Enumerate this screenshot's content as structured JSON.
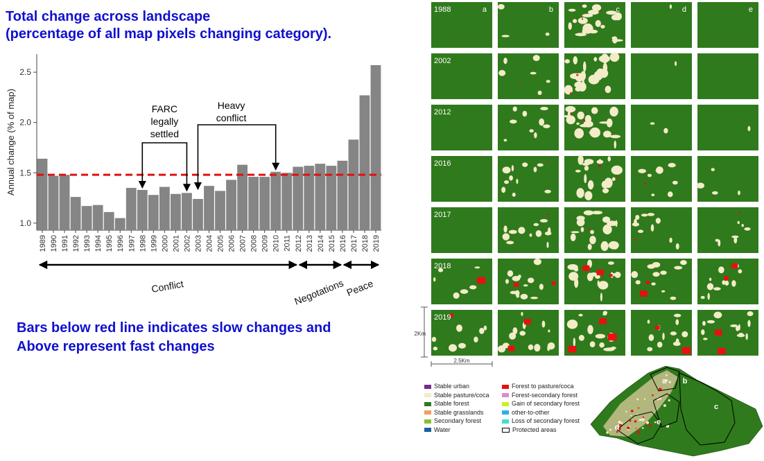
{
  "heading": {
    "line1": "Total change across landscape",
    "line2": "(percentage of all map pixels changing category)."
  },
  "note": {
    "line1": "Bars below red line indicates slow changes and",
    "line2": "Above represent fast changes"
  },
  "chart_data": {
    "type": "bar",
    "ylabel": "Annual change (% of map)",
    "xlabel": "",
    "ylim": [
      0.93,
      2.68
    ],
    "yticks": [
      1.0,
      1.5,
      2.0,
      2.5
    ],
    "ytick_labels": [
      "1.0",
      "1.5",
      "2.0",
      "2.5"
    ],
    "categories": [
      "1989",
      "1990",
      "1991",
      "1992",
      "1993",
      "1994",
      "1995",
      "1996",
      "1997",
      "1998",
      "1999",
      "2000",
      "2001",
      "2002",
      "2003",
      "2004",
      "2005",
      "2006",
      "2007",
      "2008",
      "2009",
      "2010",
      "2011",
      "2012",
      "2013",
      "2014",
      "2015",
      "2016",
      "2017",
      "2018",
      "2019"
    ],
    "values": [
      1.64,
      1.47,
      1.48,
      1.26,
      1.17,
      1.18,
      1.11,
      1.05,
      1.35,
      1.33,
      1.28,
      1.36,
      1.29,
      1.3,
      1.24,
      1.37,
      1.32,
      1.43,
      1.58,
      1.46,
      1.46,
      1.51,
      1.5,
      1.56,
      1.57,
      1.59,
      1.57,
      1.62,
      1.83,
      2.27,
      2.57
    ],
    "bar_color": "#858585",
    "reference_line": {
      "value": 1.48,
      "color": "#e01010",
      "style": "dashed"
    },
    "annotations": [
      {
        "label_lines": [
          "FARC",
          "legally",
          "settled"
        ],
        "from": "1998",
        "to": "2002"
      },
      {
        "label_lines": [
          "Heavy",
          "conflict"
        ],
        "from": "2003",
        "to": "2010"
      }
    ],
    "periods": [
      {
        "label": "Conflict",
        "from": "1989",
        "to": "2012"
      },
      {
        "label": "Negotations",
        "from": "2012",
        "to": "2016"
      },
      {
        "label": "Peace",
        "from": "2016",
        "to": "2019"
      }
    ]
  },
  "maps": {
    "columns": [
      "a",
      "b",
      "c",
      "d",
      "e"
    ],
    "rows": [
      "1988",
      "2002",
      "2012",
      "2016",
      "2017",
      "2018",
      "2019"
    ],
    "scale_vertical": "2Km",
    "scale_horizontal": "2.5Km",
    "legend": [
      {
        "label": "Stable urban",
        "color": "#7a2a8c"
      },
      {
        "label": "Stable pasture/coca",
        "color": "#f3ecc8"
      },
      {
        "label": "Stable forest",
        "color": "#2f7a1c"
      },
      {
        "label": "Stable grasslands",
        "color": "#f0a060"
      },
      {
        "label": "Secondary forest",
        "color": "#8bbf2a"
      },
      {
        "label": "Water",
        "color": "#1a5fa0"
      },
      {
        "label": "Forest to pasture/coca",
        "color": "#e81010"
      },
      {
        "label": "Forest-secondary forest",
        "color": "#e089c8"
      },
      {
        "label": "Gain of secondary forest",
        "color": "#c8f028"
      },
      {
        "label": "other-to-other",
        "color": "#30b0e0"
      },
      {
        "label": "Loss of secondary forest",
        "color": "#40e0c8"
      },
      {
        "label": "Protected areas",
        "color": "#ffffff"
      }
    ],
    "region_labels": [
      "a",
      "b",
      "c",
      "d",
      "e"
    ],
    "colors": {
      "forest": "#2f7a1c",
      "pasture": "#f3ecc8",
      "red": "#e81010"
    }
  }
}
